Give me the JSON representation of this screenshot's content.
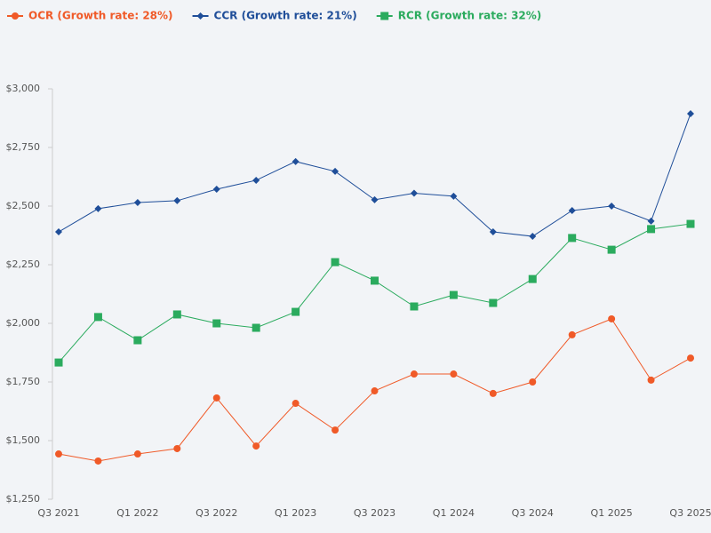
{
  "chart_data": {
    "type": "line",
    "categories": [
      "Q3 2021",
      null,
      "Q1 2022",
      null,
      "Q3 2022",
      null,
      "Q1 2023",
      null,
      "Q3 2023",
      null,
      "Q1 2024",
      null,
      "Q3 2024",
      null,
      "Q1 2025",
      null,
      "Q3 2025"
    ],
    "series": [
      {
        "name": "OCR (Growth rate: 28%)",
        "color": "#f05a28",
        "marker": "circle",
        "values": [
          1443,
          1413,
          1443,
          1466,
          1682,
          1477,
          1659,
          1545,
          1712,
          1784,
          1784,
          1701,
          1750,
          1951,
          2019,
          1758,
          1852
        ]
      },
      {
        "name": "CCR (Growth rate: 21%)",
        "color": "#1f4e99",
        "marker": "diamond",
        "values": [
          2390,
          2489,
          2515,
          2523,
          2572,
          2610,
          2690,
          2648,
          2527,
          2555,
          2542,
          2390,
          2371,
          2481,
          2500,
          2436,
          2894
        ]
      },
      {
        "name": "RCR (Growth rate: 32%)",
        "color": "#2bab5e",
        "marker": "square",
        "values": [
          1833,
          2027,
          1928,
          2038,
          2000,
          1981,
          2049,
          2261,
          2182,
          2072,
          2121,
          2087,
          2189,
          2364,
          2314,
          2402,
          2424
        ]
      }
    ],
    "ylim": [
      1250,
      3000
    ],
    "yticks": [
      {
        "value": 1250,
        "label": "$1,250"
      },
      {
        "value": 1500,
        "label": "$1,500"
      },
      {
        "value": 1750,
        "label": "$1,750"
      },
      {
        "value": 2000,
        "label": "$2,000"
      },
      {
        "value": 2250,
        "label": "$2,250"
      },
      {
        "value": 2500,
        "label": "$2,500"
      },
      {
        "value": 2750,
        "label": "$2,750"
      },
      {
        "value": 3000,
        "label": "$3,000"
      }
    ],
    "legend": "top-left",
    "grid": false
  }
}
